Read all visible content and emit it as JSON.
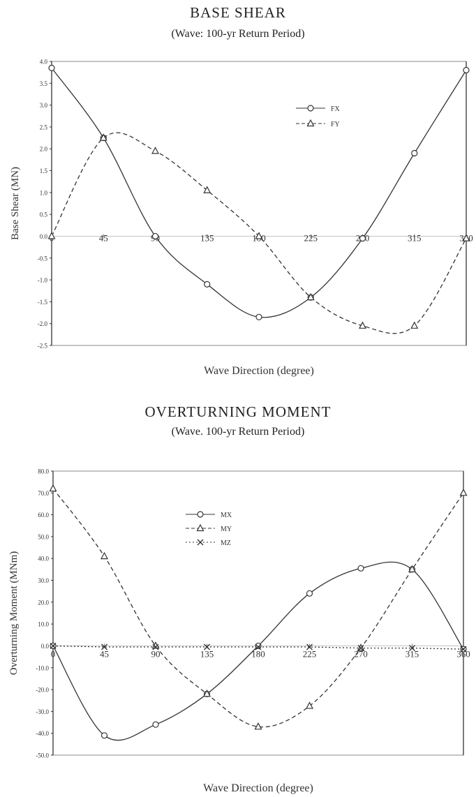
{
  "chart_data": [
    {
      "type": "line",
      "title": "BASE SHEAR",
      "subtitle": "(Wave: 100-yr Return Period)",
      "xlabel": "Wave Direction (degree)",
      "ylabel": "Base Shear (MN)",
      "x": [
        0,
        45,
        90,
        135,
        180,
        225,
        270,
        315,
        360
      ],
      "x_tick_labels": [
        "0",
        "45",
        "90",
        "135",
        "180",
        "225",
        "270",
        "315",
        "360"
      ],
      "ylim": [
        -2.5,
        4.0
      ],
      "y_ticks": [
        4.0,
        3.5,
        3.0,
        2.5,
        2.0,
        1.5,
        1.0,
        0.5,
        0.0,
        -0.5,
        -1.0,
        -1.5,
        -2.0,
        -2.5
      ],
      "y_tick_labels": [
        "4.0",
        "3.5",
        "3.0",
        "2.5",
        "2.0",
        "1.5",
        "1.0",
        "0.5",
        "0.0",
        "-0.5",
        "-1.0",
        "-1.5",
        "-2.0",
        "-2.5"
      ],
      "legend_position": "top-right",
      "series": [
        {
          "name": "FX",
          "marker": "circle",
          "line": "solid",
          "values": [
            3.85,
            2.25,
            0.0,
            -1.1,
            -1.85,
            -1.4,
            -0.05,
            1.9,
            3.8
          ]
        },
        {
          "name": "FY",
          "marker": "triangle",
          "line": "dashed",
          "values": [
            0.0,
            2.25,
            1.95,
            1.05,
            0.0,
            -1.4,
            -2.05,
            -2.05,
            -0.05
          ]
        }
      ]
    },
    {
      "type": "line",
      "title": "OVERTURNING MOMENT",
      "subtitle": "(Wave. 100-yr Return Period)",
      "xlabel": "Wave Direction (degree)",
      "ylabel": "Overturning Moment (MNm)",
      "x": [
        0,
        45,
        90,
        135,
        180,
        225,
        270,
        315,
        360
      ],
      "x_tick_labels": [
        "0",
        "45",
        "90",
        "135",
        "180",
        "225",
        "270",
        "315",
        "360"
      ],
      "ylim": [
        -50,
        80
      ],
      "y_ticks": [
        80,
        70,
        60,
        50,
        40,
        30,
        20,
        10,
        0,
        -10,
        -20,
        -30,
        -40,
        -50
      ],
      "y_tick_labels": [
        "80.0",
        "70.0",
        "60.0",
        "50.0",
        "40.0",
        "30.0",
        "20.0",
        "10.0",
        "0.0",
        "-10.0",
        "-20.0",
        "-30.0",
        "-40.0",
        "-50.0"
      ],
      "legend_position": "top-left",
      "series": [
        {
          "name": "MX",
          "marker": "circle",
          "line": "solid",
          "values": [
            0.0,
            -41.0,
            -36.0,
            -22.0,
            0.0,
            24.0,
            35.5,
            35.0,
            -1.5
          ]
        },
        {
          "name": "MY",
          "marker": "triangle",
          "line": "dashed",
          "values": [
            72.0,
            41.0,
            0.0,
            -22.0,
            -37.0,
            -27.5,
            -1.0,
            35.0,
            70.0
          ]
        },
        {
          "name": "MZ",
          "marker": "x",
          "line": "dotted",
          "values": [
            0.0,
            -0.5,
            -0.5,
            -0.5,
            -0.5,
            -0.5,
            -1.0,
            -1.0,
            -1.5
          ]
        }
      ]
    }
  ]
}
